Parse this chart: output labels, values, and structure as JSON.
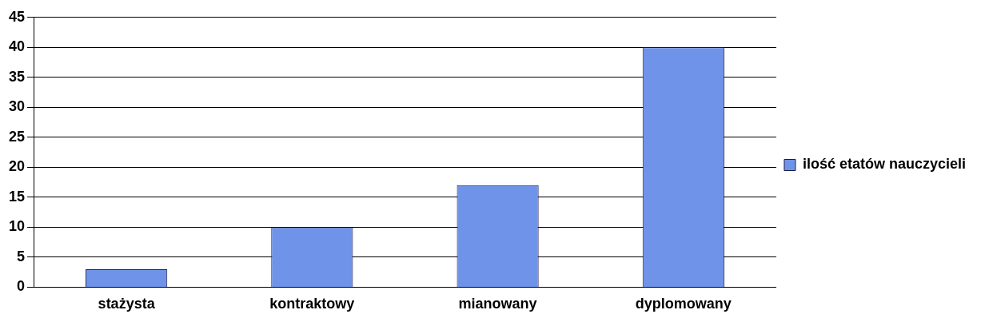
{
  "chart_data": {
    "type": "bar",
    "categories": [
      "stażysta",
      "kontraktowy",
      "mianowany",
      "dyplomowany"
    ],
    "series": [
      {
        "name": "ilość etatów nauczycieli",
        "color": "#6f93e8",
        "values": [
          3,
          10,
          17,
          40
        ]
      }
    ],
    "ylim": [
      0,
      45
    ],
    "yticks": [
      0,
      5,
      10,
      15,
      20,
      25,
      30,
      35,
      40,
      45
    ],
    "grid": "y",
    "legend": "right"
  }
}
